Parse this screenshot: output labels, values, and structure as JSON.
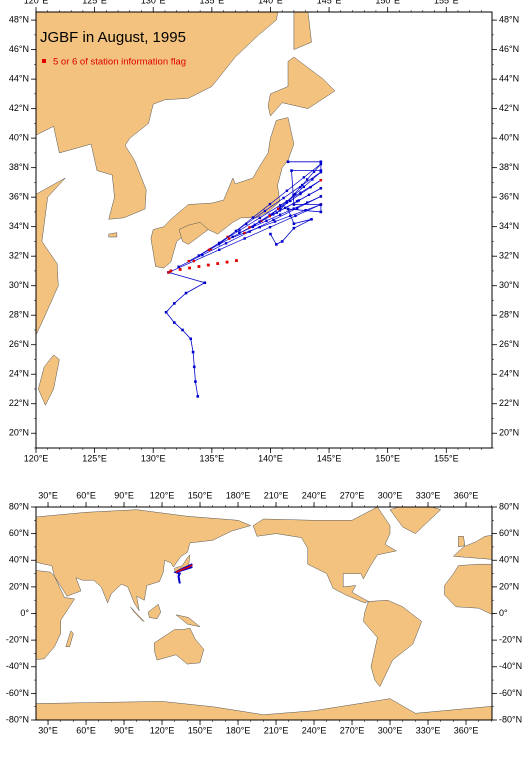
{
  "title": "JGBF in August, 1995",
  "legend": "5 or 6 of station information flag",
  "regional_map": {
    "lon_ticks": [
      {
        "value": 120,
        "label": "120°E"
      },
      {
        "value": 125,
        "label": "125°E"
      },
      {
        "value": 130,
        "label": "130°E"
      },
      {
        "value": 135,
        "label": "135°E"
      },
      {
        "value": 140,
        "label": "140°E"
      },
      {
        "value": 145,
        "label": "145°E"
      },
      {
        "value": 150,
        "label": "150°E"
      },
      {
        "value": 155,
        "label": "155°E"
      }
    ],
    "lat_ticks": [
      {
        "value": 20,
        "label": "20°N"
      },
      {
        "value": 22,
        "label": "22°N"
      },
      {
        "value": 24,
        "label": "24°N"
      },
      {
        "value": 26,
        "label": "26°N"
      },
      {
        "value": 28,
        "label": "28°N"
      },
      {
        "value": 30,
        "label": "30°N"
      },
      {
        "value": 32,
        "label": "32°N"
      },
      {
        "value": 34,
        "label": "34°N"
      },
      {
        "value": 36,
        "label": "36°N"
      },
      {
        "value": 38,
        "label": "38°N"
      },
      {
        "value": 40,
        "label": "40°N"
      },
      {
        "value": 42,
        "label": "42°N"
      },
      {
        "value": 44,
        "label": "44°N"
      },
      {
        "value": 46,
        "label": "46°N"
      },
      {
        "value": 48,
        "label": "48°N"
      }
    ]
  },
  "world_map": {
    "lon_ticks": [
      {
        "value": 30,
        "label": "30°E"
      },
      {
        "value": 60,
        "label": "60°E"
      },
      {
        "value": 90,
        "label": "90°E"
      },
      {
        "value": 120,
        "label": "120°E"
      },
      {
        "value": 150,
        "label": "150°E"
      },
      {
        "value": 180,
        "label": "180°E"
      },
      {
        "value": 210,
        "label": "210°E"
      },
      {
        "value": 240,
        "label": "240°E"
      },
      {
        "value": 270,
        "label": "270°E"
      },
      {
        "value": 300,
        "label": "300°E"
      },
      {
        "value": 330,
        "label": "330°E"
      },
      {
        "value": 360,
        "label": "360°E"
      }
    ],
    "lat_ticks": [
      {
        "value": 80,
        "label": "80°N"
      },
      {
        "value": 60,
        "label": "60°N"
      },
      {
        "value": 40,
        "label": "40°N"
      },
      {
        "value": 20,
        "label": "20°N"
      },
      {
        "value": 0,
        "label": "0°"
      },
      {
        "value": -20,
        "label": "-20°N"
      },
      {
        "value": -40,
        "label": "-40°N"
      },
      {
        "value": -60,
        "label": "-60°N"
      },
      {
        "value": -80,
        "label": "-80°N"
      }
    ]
  }
}
